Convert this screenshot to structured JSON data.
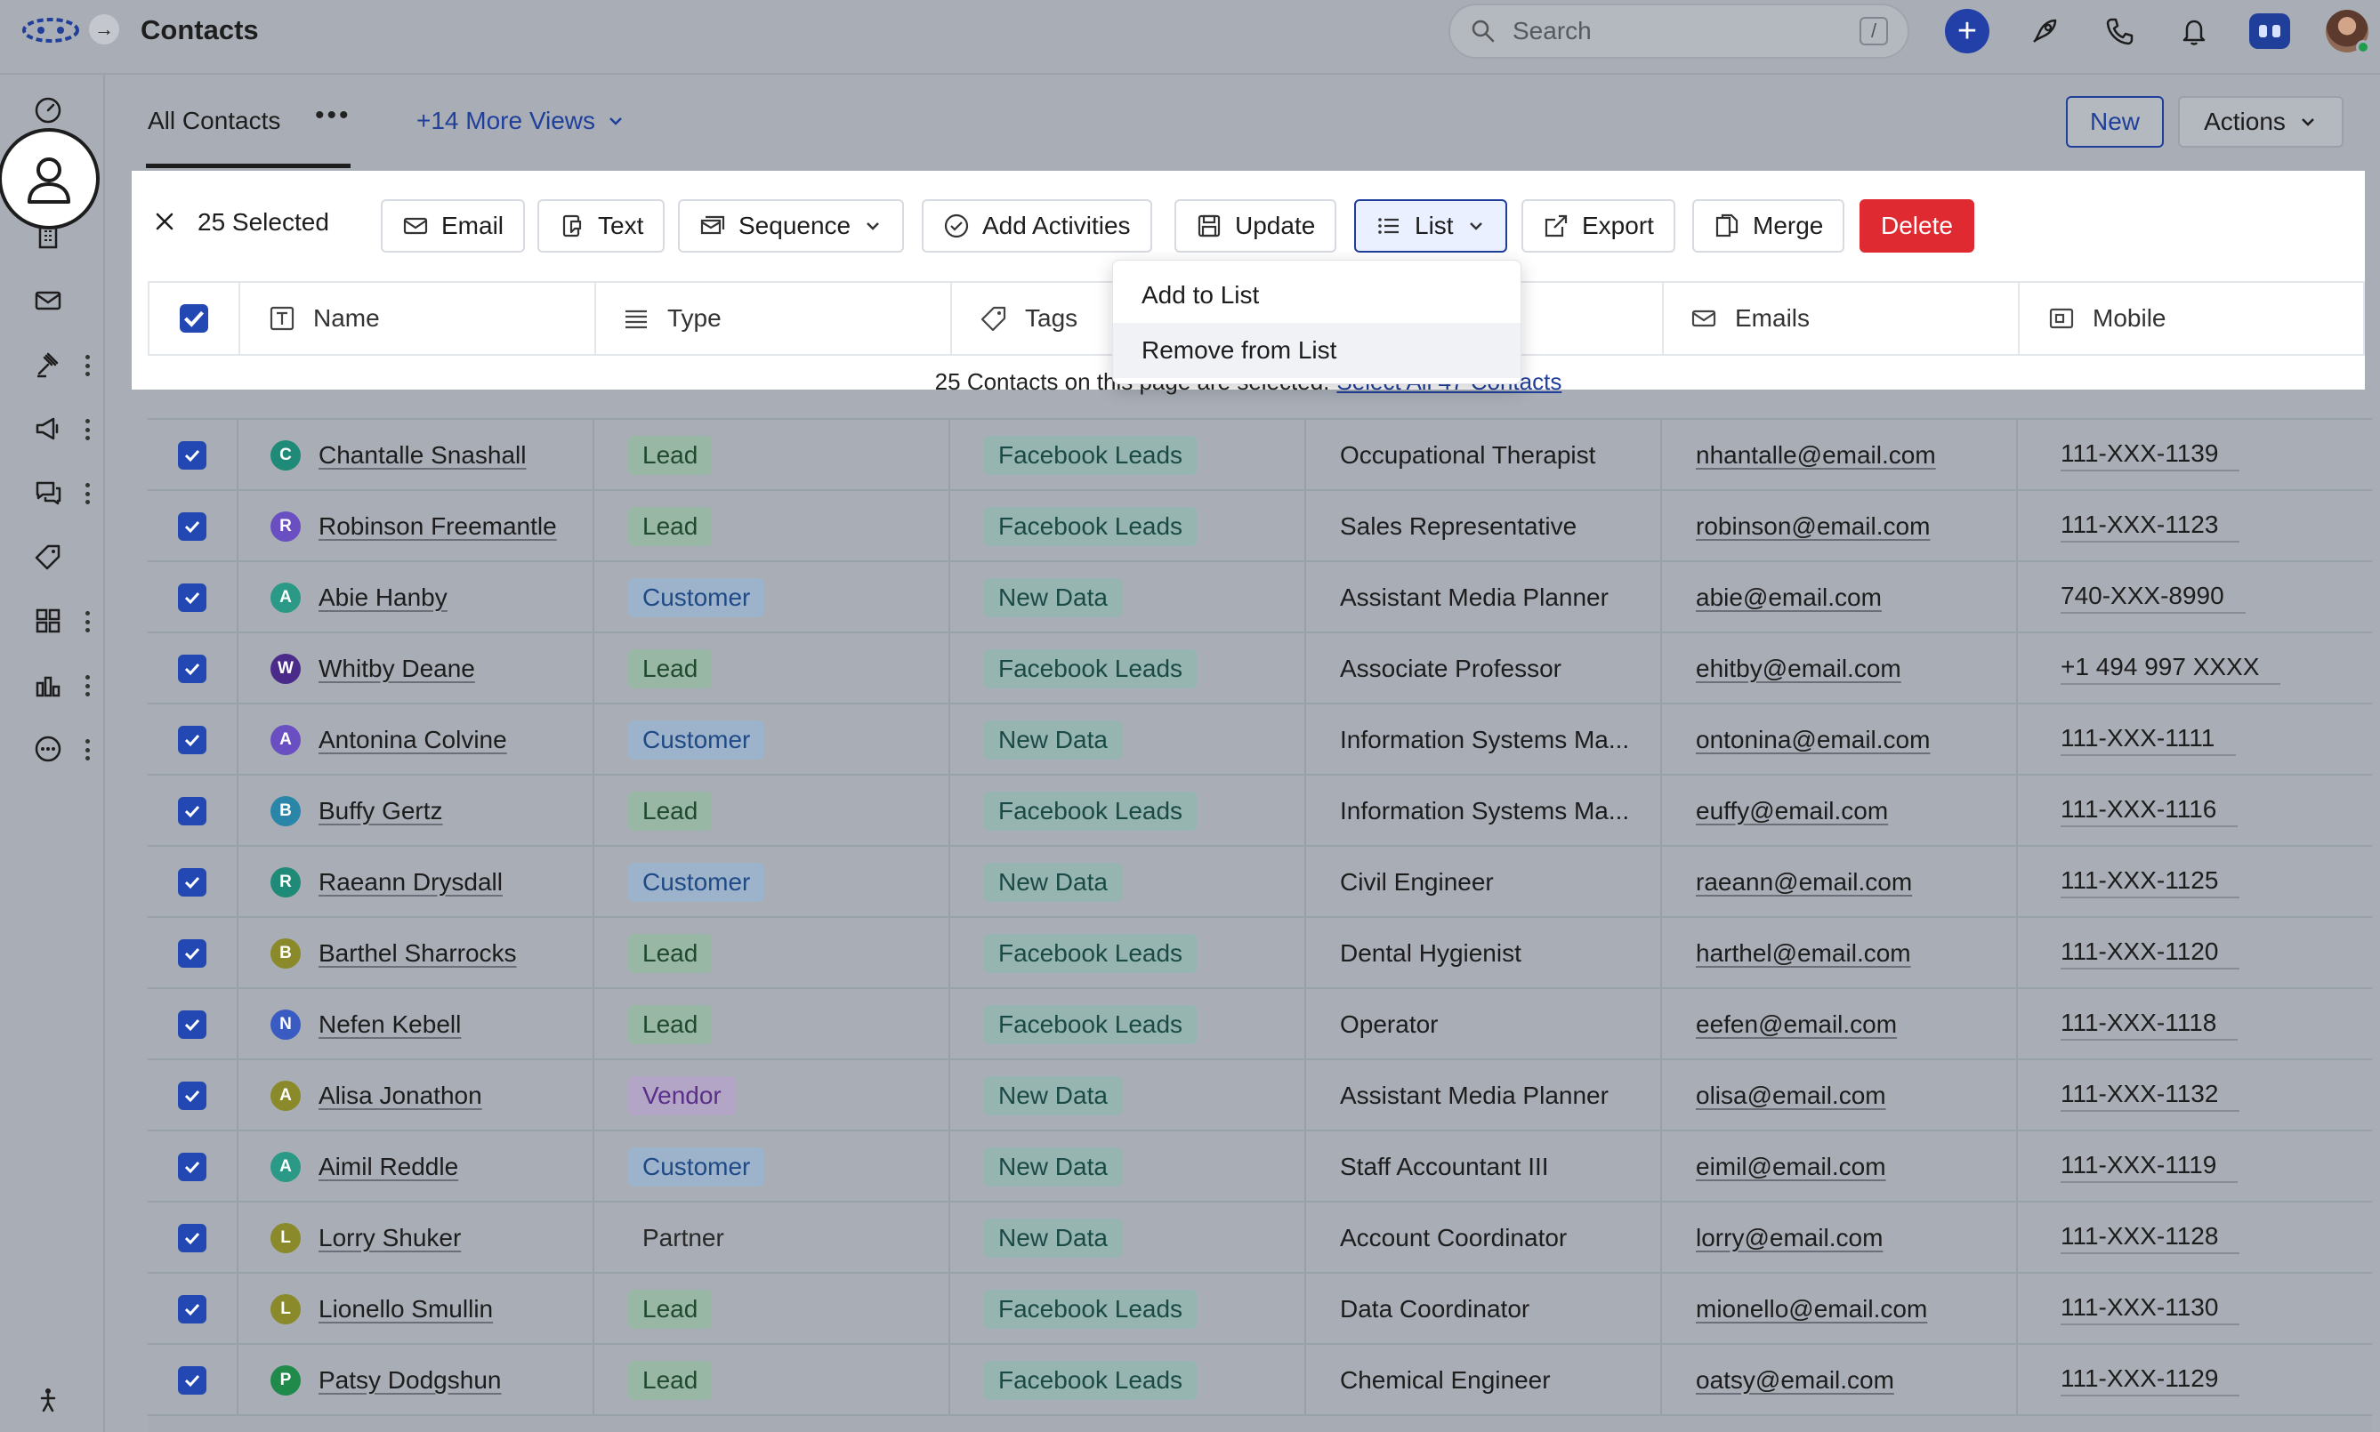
{
  "header": {
    "title": "Contacts",
    "search_placeholder": "Search",
    "search_shortcut": "/"
  },
  "tabs": {
    "active": "All Contacts",
    "more_views": "+14 More Views",
    "new_label": "New",
    "actions_label": "Actions"
  },
  "selection": {
    "count_label": "25 Selected",
    "banner_text": "25 Contacts on this page are selected.",
    "select_all_link": "Select All 47 Contacts"
  },
  "bulk_actions": {
    "email": "Email",
    "text": "Text",
    "sequence": "Sequence",
    "add_activities": "Add Activities",
    "update": "Update",
    "list": "List",
    "export": "Export",
    "merge": "Merge",
    "delete": "Delete"
  },
  "list_menu": {
    "add": "Add to List",
    "remove": "Remove from List"
  },
  "columns": {
    "name": "Name",
    "type": "Type",
    "tags": "Tags",
    "emails": "Emails",
    "mobile": "Mobile"
  },
  "colors": {
    "accent": "#1f3f9a",
    "delete": "#de2a30",
    "checkbox": "#2348b4"
  },
  "rows": [
    {
      "initial": "C",
      "color": "#1f8a77",
      "name": "Chantalle Snashall",
      "type": "Lead",
      "type_kind": "lead",
      "tag": "Facebook Leads",
      "title": "Occupational Therapist",
      "email": "nhantalle@email.com",
      "mobile": "111-XXX-1139"
    },
    {
      "initial": "R",
      "color": "#6a4fc2",
      "name": "Robinson Freemantle",
      "type": "Lead",
      "type_kind": "lead",
      "tag": "Facebook Leads",
      "title": "Sales Representative",
      "email": "robinson@email.com",
      "mobile": "111-XXX-1123"
    },
    {
      "initial": "A",
      "color": "#2a9a86",
      "name": "Abie Hanby",
      "type": "Customer",
      "type_kind": "customer",
      "tag": "New Data",
      "title": "Assistant Media Planner",
      "email": "abie@email.com",
      "mobile": "740-XXX-8990"
    },
    {
      "initial": "W",
      "color": "#4a2b8a",
      "name": "Whitby Deane",
      "type": "Lead",
      "type_kind": "lead",
      "tag": "Facebook Leads",
      "title": "Associate Professor",
      "email": "ehitby@email.com",
      "mobile": "+1 494 997 XXXX"
    },
    {
      "initial": "A",
      "color": "#6a4fc2",
      "name": "Antonina Colvine",
      "type": "Customer",
      "type_kind": "customer",
      "tag": "New Data",
      "title": "Information Systems Ma...",
      "email": "ontonina@email.com",
      "mobile": "111-XXX-1111"
    },
    {
      "initial": "B",
      "color": "#2a86a8",
      "name": "Buffy Gertz",
      "type": "Lead",
      "type_kind": "lead",
      "tag": "Facebook Leads",
      "title": "Information Systems Ma...",
      "email": "euffy@email.com",
      "mobile": "111-XXX-1116"
    },
    {
      "initial": "R",
      "color": "#1f8a77",
      "name": "Raeann Drysdall",
      "type": "Customer",
      "type_kind": "customer",
      "tag": "New Data",
      "title": "Civil Engineer",
      "email": "raeann@email.com",
      "mobile": "111-XXX-1125"
    },
    {
      "initial": "B",
      "color": "#8a8a2a",
      "name": "Barthel Sharrocks",
      "type": "Lead",
      "type_kind": "lead",
      "tag": "Facebook Leads",
      "title": "Dental Hygienist",
      "email": "harthel@email.com",
      "mobile": "111-XXX-1120"
    },
    {
      "initial": "N",
      "color": "#3a5bc2",
      "name": "Nefen Kebell",
      "type": "Lead",
      "type_kind": "lead",
      "tag": "Facebook Leads",
      "title": "Operator",
      "email": "eefen@email.com",
      "mobile": "111-XXX-1118"
    },
    {
      "initial": "A",
      "color": "#8a8a2a",
      "name": "Alisa Jonathon",
      "type": "Vendor",
      "type_kind": "vendor",
      "tag": "New Data",
      "title": "Assistant Media Planner",
      "email": "olisa@email.com",
      "mobile": "111-XXX-1132"
    },
    {
      "initial": "A",
      "color": "#2a9a86",
      "name": "Aimil Reddle",
      "type": "Customer",
      "type_kind": "customer",
      "tag": "New Data",
      "title": "Staff Accountant III",
      "email": "eimil@email.com",
      "mobile": "111-XXX-1119"
    },
    {
      "initial": "L",
      "color": "#8a8a2a",
      "name": "Lorry Shuker",
      "type": "Partner",
      "type_kind": "partner",
      "tag": "New Data",
      "title": "Account Coordinator",
      "email": "lorry@email.com",
      "mobile": "111-XXX-1128"
    },
    {
      "initial": "L",
      "color": "#8a8a2a",
      "name": "Lionello Smullin",
      "type": "Lead",
      "type_kind": "lead",
      "tag": "Facebook Leads",
      "title": "Data Coordinator",
      "email": "mionello@email.com",
      "mobile": "111-XXX-1130"
    },
    {
      "initial": "P",
      "color": "#1f8a4a",
      "name": "Patsy Dodgshun",
      "type": "Lead",
      "type_kind": "lead",
      "tag": "Facebook Leads",
      "title": "Chemical Engineer",
      "email": "oatsy@email.com",
      "mobile": "111-XXX-1129"
    }
  ]
}
